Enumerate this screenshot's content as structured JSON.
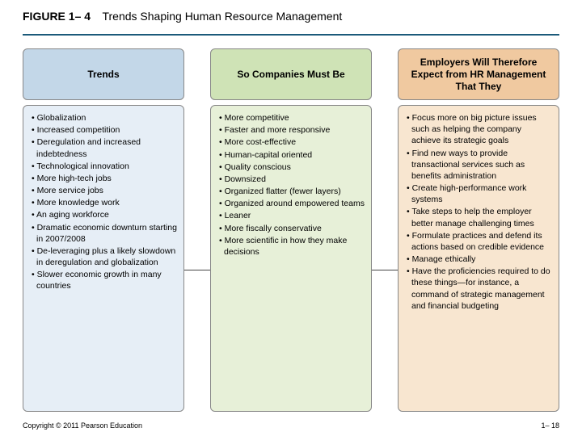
{
  "figure_label": "FIGURE 1– 4",
  "figure_title": "Trends Shaping Human Resource Management",
  "divider_color": "#1b5a7a",
  "columns": [
    {
      "header": "Trends",
      "header_bg": "#c3d7e8",
      "body_bg": "#e6eef6",
      "items": [
        "Globalization",
        "Increased competition",
        "Deregulation and increased indebtedness",
        "Technological innovation",
        "More high-tech jobs",
        "More service jobs",
        "More knowledge work",
        "An aging workforce",
        "Dramatic economic downturn starting in 2007/2008",
        "De-leveraging plus a likely slowdown in deregulation and globalization",
        "Slower economic growth in many countries"
      ]
    },
    {
      "header": "So Companies Must Be",
      "header_bg": "#cfe3b6",
      "body_bg": "#e7f0d8",
      "items": [
        "More competitive",
        "Faster and more responsive",
        "More cost-effective",
        "Human-capital oriented",
        "Quality conscious",
        "Downsized",
        "Organized flatter (fewer layers)",
        "Organized around empowered teams",
        "Leaner",
        "More fiscally conservative",
        "More scientific in how they make decisions"
      ]
    },
    {
      "header": "Employers Will Therefore Expect from HR Management That They",
      "header_bg": "#f0c9a0",
      "body_bg": "#f8e6d0",
      "items": [
        "Focus more on big picture issues such as helping the company achieve its strategic goals",
        "Find new ways to provide transactional services such as benefits administration",
        "Create high-performance work systems",
        "Take steps to help the employer better manage challenging times",
        "Formulate practices and defend its actions based on credible evidence",
        "Manage ethically",
        "Have the proficiencies required to do these things—for instance, a command of strategic management and financial budgeting"
      ]
    }
  ],
  "copyright": "Copyright © 2011 Pearson Education",
  "page_number": "1– 18"
}
